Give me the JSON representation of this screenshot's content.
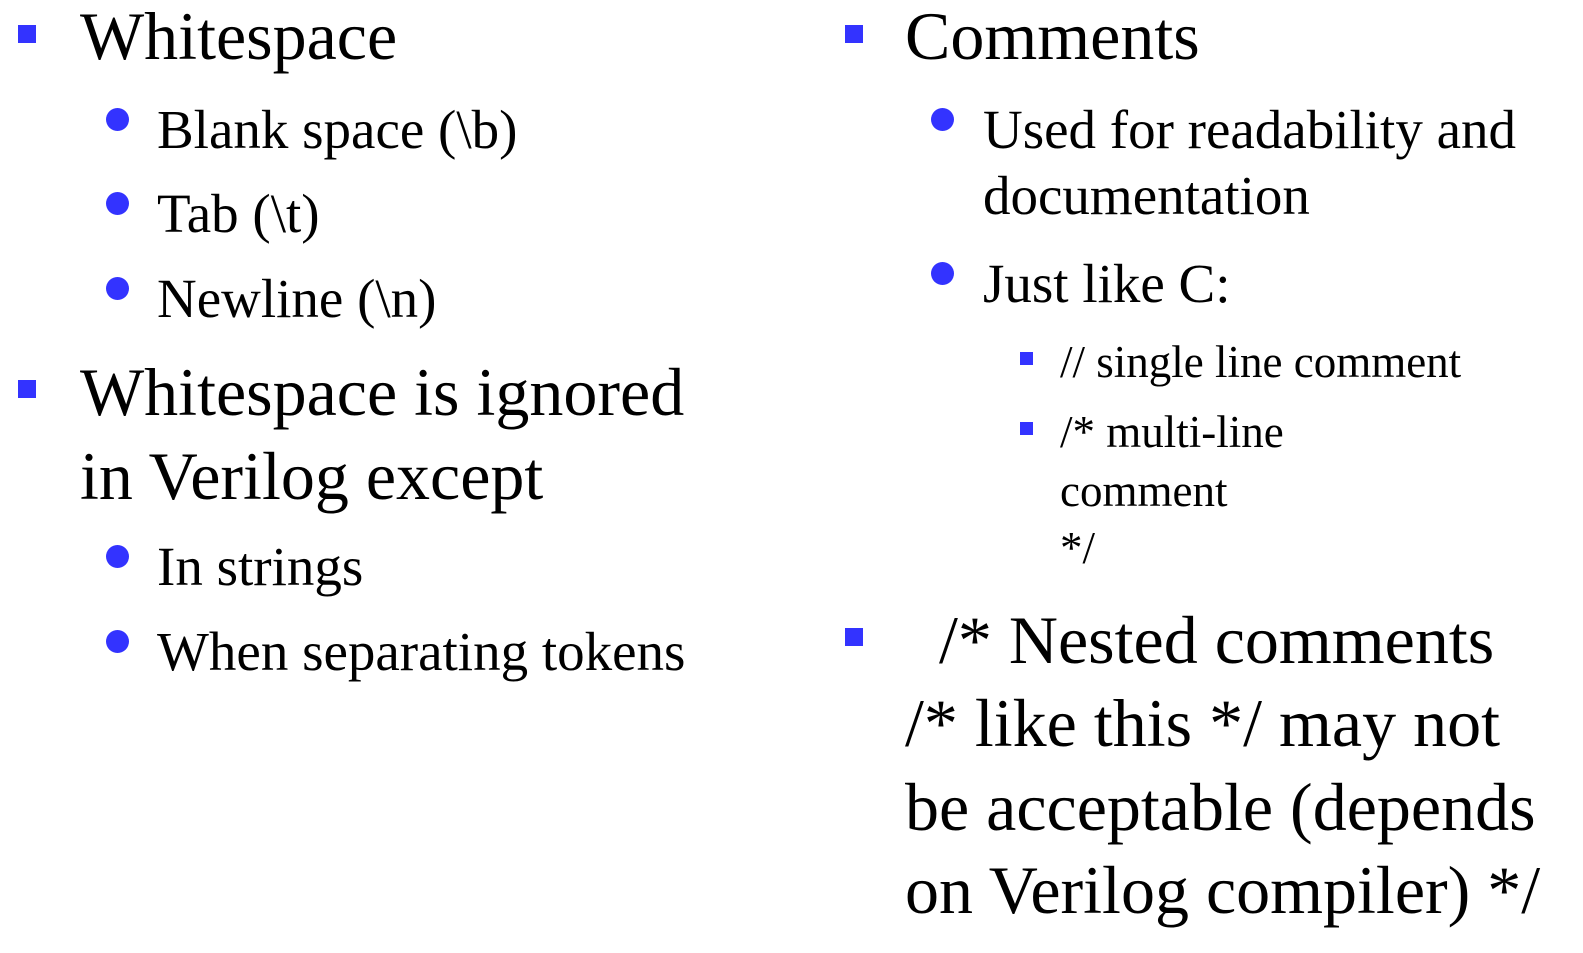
{
  "left_column": {
    "whitespace_heading": "Whitespace",
    "whitespace_items": [
      "Blank space (\\b)",
      "Tab (\\t)",
      "Newline (\\n)"
    ],
    "ignored_line_1": "Whitespace is ignored",
    "ignored_line_2": "in Verilog except",
    "except_items": [
      "In strings",
      "When separating tokens"
    ]
  },
  "right_column": {
    "comments_heading": "Comments",
    "comments_item_1_line_1": "Used for readability and",
    "comments_item_1_line_2": "documentation",
    "comments_item_2": "Just like C:",
    "c_style_item_1": "// single line comment",
    "c_style_item_2_lines": [
      "/* multi-line",
      "comment",
      "*/"
    ],
    "nested_lines": [
      "  /* Nested comments",
      "/* like this */ may not",
      "be acceptable (depends",
      "on Verilog compiler) */"
    ]
  },
  "colors": {
    "bullet": "#3333ff",
    "text": "#000000",
    "background": "#ffffff"
  },
  "icons": {
    "level1_bullet": "blue-square-icon",
    "level2_bullet": "blue-circle-icon",
    "level3_bullet": "small-blue-square-icon"
  }
}
